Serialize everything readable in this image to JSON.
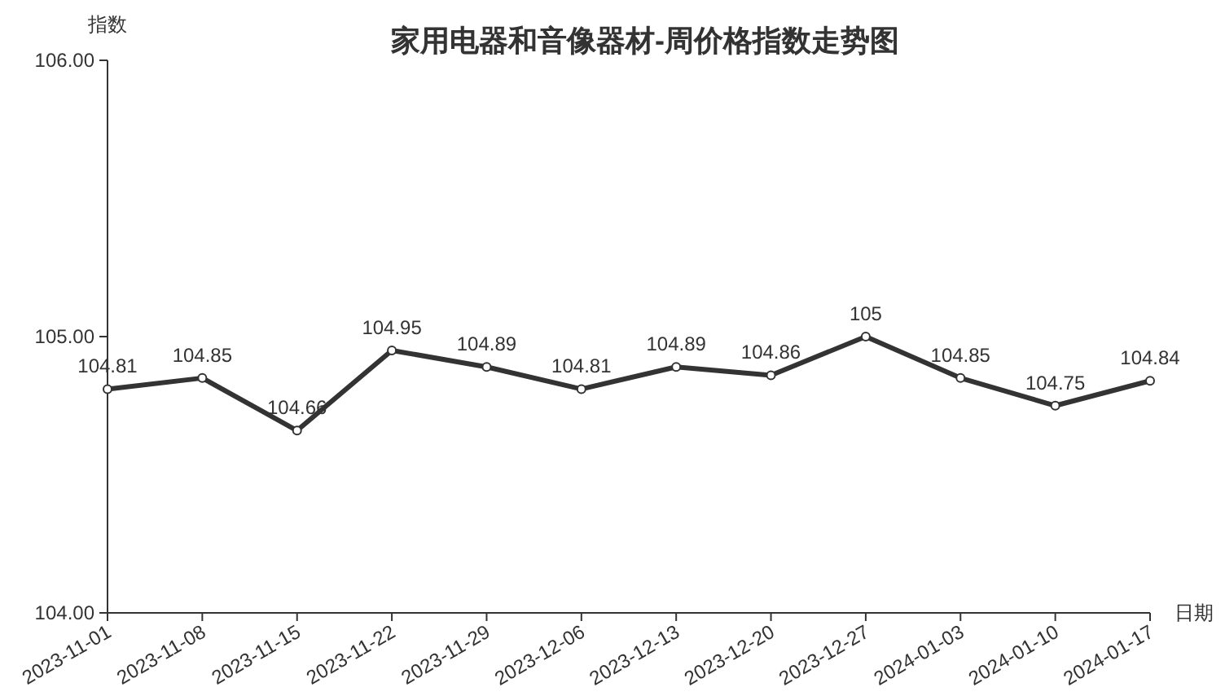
{
  "chart_data": {
    "type": "line",
    "title": "家用电器和音像器材-周价格指数走势图",
    "ylabel": "指数",
    "xlabel": "日期",
    "categories": [
      "2023-11-01",
      "2023-11-08",
      "2023-11-15",
      "2023-11-22",
      "2023-11-29",
      "2023-12-06",
      "2023-12-13",
      "2023-12-20",
      "2023-12-27",
      "2024-01-03",
      "2024-01-10",
      "2024-01-17"
    ],
    "series": [
      {
        "color": "#333333",
        "values": [
          104.81,
          104.85,
          104.66,
          104.95,
          104.89,
          104.81,
          104.89,
          104.86,
          105,
          104.85,
          104.75,
          104.84
        ]
      }
    ],
    "ylim": [
      104,
      106
    ],
    "yticks": [
      {
        "value": 104,
        "label": "104.00"
      },
      {
        "value": 105,
        "label": "105.00"
      },
      {
        "value": 106,
        "label": "106.00"
      }
    ],
    "data_labels": true,
    "marker": "circle",
    "line_style": "solid"
  }
}
